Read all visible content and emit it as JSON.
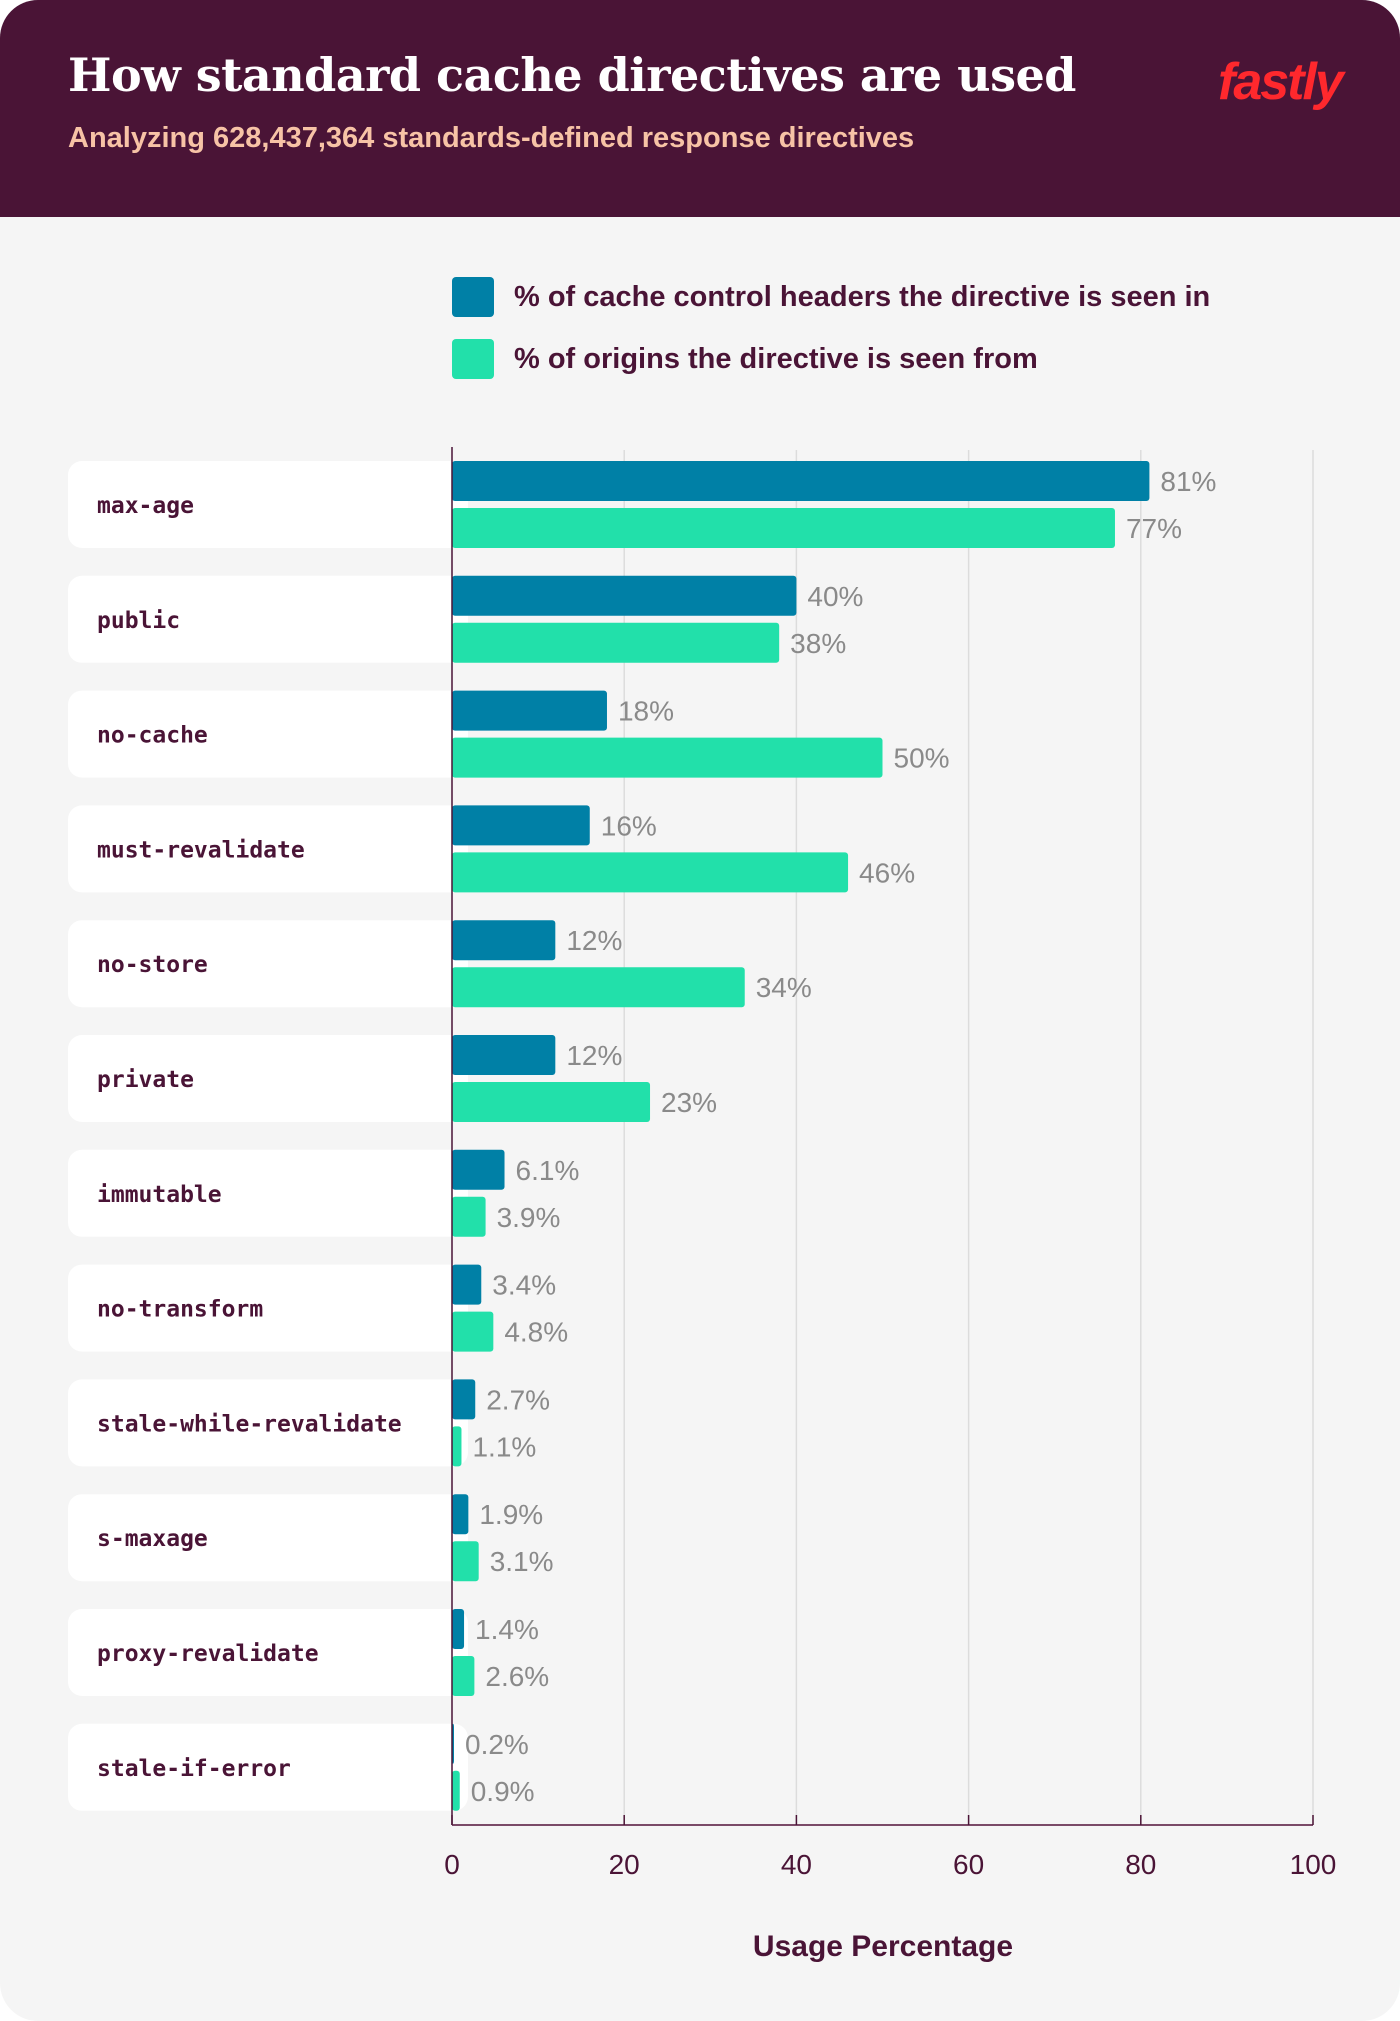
{
  "header": {
    "title": "How standard cache directives are used",
    "subtitle": "Analyzing 628,437,364 standards-defined response directives",
    "logo": "fastly"
  },
  "colors": {
    "header_bg": "#4a1436",
    "series_headers": "#0080a6",
    "series_origins": "#22e0aa",
    "logo": "#ff282d"
  },
  "chart_data": {
    "type": "bar",
    "orientation": "horizontal",
    "title": "How standard cache directives are used",
    "subtitle": "Analyzing 628,437,364 standards-defined response directives",
    "xlabel": "Usage Percentage",
    "ylabel": "",
    "xlim": [
      0,
      100
    ],
    "xticks": [
      "0",
      "20",
      "40",
      "60",
      "80",
      "100"
    ],
    "grid": true,
    "legend_position": "top",
    "categories": [
      "max-age",
      "public",
      "no-cache",
      "must-revalidate",
      "no-store",
      "private",
      "immutable",
      "no-transform",
      "stale-while-revalidate",
      "s-maxage",
      "proxy-revalidate",
      "stale-if-error"
    ],
    "series": [
      {
        "name": "% of cache control headers the directive is seen in",
        "color": "#0080a6",
        "values": [
          81,
          40,
          18,
          16,
          12,
          12,
          6.1,
          3.4,
          2.7,
          1.9,
          1.4,
          0.2
        ],
        "labels": [
          "81%",
          "40%",
          "18%",
          "16%",
          "12%",
          "12%",
          "6.1%",
          "3.4%",
          "2.7%",
          "1.9%",
          "1.4%",
          "0.2%"
        ]
      },
      {
        "name": "% of origins the directive is seen from",
        "color": "#22e0aa",
        "values": [
          77,
          38,
          50,
          46,
          34,
          23,
          3.9,
          4.8,
          1.1,
          3.1,
          2.6,
          0.9
        ],
        "labels": [
          "77%",
          "38%",
          "50%",
          "46%",
          "34%",
          "23%",
          "3.9%",
          "4.8%",
          "1.1%",
          "3.1%",
          "2.6%",
          "0.9%"
        ]
      }
    ]
  }
}
